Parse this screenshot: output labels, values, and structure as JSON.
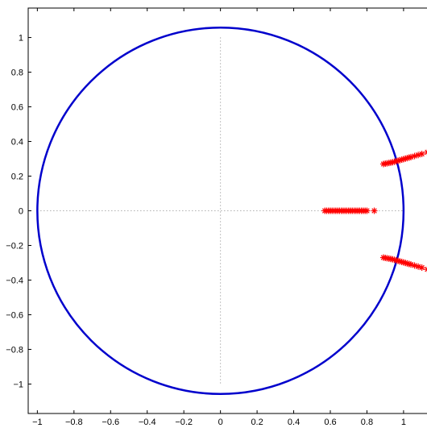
{
  "chart_data": {
    "type": "scatter",
    "title": "",
    "xlabel": "",
    "ylabel": "",
    "xlim": [
      -1.05,
      1.15
    ],
    "ylim": [
      -1.17,
      1.17
    ],
    "grid": false,
    "legend": "none",
    "x_ticks": [
      "-1",
      "-0.8",
      "-0.6",
      "-0.4",
      "-0.2",
      "0",
      "0.2",
      "0.4",
      "0.6",
      "0.8",
      "1"
    ],
    "y_ticks": [
      "1",
      "0.8",
      "0.6",
      "0.4",
      "0.2",
      "0",
      "-0.2",
      "-0.4",
      "-0.6",
      "-0.8",
      "-1"
    ],
    "unit_circle": {
      "radius": 1,
      "color": "#0000cc"
    },
    "axis_lines": {
      "style": "dotted",
      "color": "#888888"
    },
    "series": [
      {
        "marker": "asterisk",
        "color": "#ff0000",
        "points": [
          [
            0.57,
            0.0
          ],
          [
            0.58,
            0.0
          ],
          [
            0.59,
            0.0
          ],
          [
            0.6,
            0.0
          ],
          [
            0.61,
            0.0
          ],
          [
            0.62,
            0.0
          ],
          [
            0.63,
            0.0
          ],
          [
            0.64,
            0.0
          ],
          [
            0.65,
            0.0
          ],
          [
            0.66,
            0.0
          ],
          [
            0.67,
            0.0
          ],
          [
            0.68,
            0.0
          ],
          [
            0.69,
            0.0
          ],
          [
            0.7,
            0.0
          ],
          [
            0.71,
            0.0
          ],
          [
            0.72,
            0.0
          ],
          [
            0.73,
            0.0
          ],
          [
            0.74,
            0.0
          ],
          [
            0.75,
            0.0
          ],
          [
            0.76,
            0.0
          ],
          [
            0.77,
            0.0
          ],
          [
            0.78,
            0.0
          ],
          [
            0.79,
            0.0
          ],
          [
            0.8,
            0.0
          ],
          [
            0.84,
            0.0
          ],
          [
            0.89,
            0.27
          ],
          [
            0.9,
            0.272
          ],
          [
            0.91,
            0.274
          ],
          [
            0.92,
            0.276
          ],
          [
            0.93,
            0.278
          ],
          [
            0.94,
            0.28
          ],
          [
            0.95,
            0.283
          ],
          [
            0.96,
            0.286
          ],
          [
            0.97,
            0.289
          ],
          [
            0.98,
            0.292
          ],
          [
            0.99,
            0.295
          ],
          [
            1.0,
            0.298
          ],
          [
            1.01,
            0.301
          ],
          [
            1.02,
            0.304
          ],
          [
            1.03,
            0.307
          ],
          [
            1.04,
            0.31
          ],
          [
            1.06,
            0.316
          ],
          [
            1.08,
            0.322
          ],
          [
            1.1,
            0.328
          ],
          [
            1.13,
            0.338
          ],
          [
            0.89,
            -0.27
          ],
          [
            0.9,
            -0.272
          ],
          [
            0.91,
            -0.274
          ],
          [
            0.92,
            -0.276
          ],
          [
            0.93,
            -0.278
          ],
          [
            0.94,
            -0.28
          ],
          [
            0.95,
            -0.283
          ],
          [
            0.96,
            -0.286
          ],
          [
            0.97,
            -0.289
          ],
          [
            0.98,
            -0.292
          ],
          [
            0.99,
            -0.295
          ],
          [
            1.0,
            -0.298
          ],
          [
            1.01,
            -0.301
          ],
          [
            1.02,
            -0.304
          ],
          [
            1.03,
            -0.307
          ],
          [
            1.04,
            -0.31
          ],
          [
            1.06,
            -0.316
          ],
          [
            1.08,
            -0.322
          ],
          [
            1.1,
            -0.328
          ],
          [
            1.13,
            -0.338
          ]
        ]
      }
    ]
  }
}
